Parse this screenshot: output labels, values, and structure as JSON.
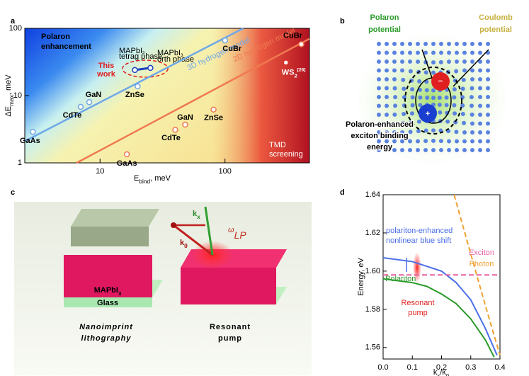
{
  "panel_labels": [
    "a",
    "b",
    "c",
    "d"
  ],
  "chart_data": [
    {
      "type": "scatter",
      "log": true,
      "xlim": [
        2.5,
        474
      ],
      "ylim": [
        1,
        100
      ],
      "xticks": [
        10,
        100
      ],
      "yticks": [
        1,
        10,
        100
      ],
      "xlabel": {
        "main": "E",
        "sub": "bind",
        "rest": ", meV"
      },
      "ylabel": {
        "main": "ΔE",
        "sub": "max",
        "rest": ", meV"
      },
      "annotations": {
        "polaron": [
          "Polaron",
          "enhancement"
        ],
        "tmd": [
          "TMD",
          "screening"
        ],
        "this_work": [
          "This",
          "work"
        ],
        "tetrag": {
          "main": "MAPbI",
          "sub": "3"
        },
        "tetrag_phase": "tetrag phase",
        "orth": {
          "main": "MAPbI",
          "sub": "3"
        },
        "orth_phase": "orth phase"
      },
      "series": [
        {
          "name": "3D hydrogen model",
          "color": "#6fa8e8",
          "line_x": [
            2.5,
            140
          ],
          "line_y": [
            2.1,
            100
          ],
          "labels": [
            "GaAs",
            "CdTe",
            "GaN",
            "ZnSe",
            "CuBr"
          ],
          "x": [
            2.9,
            7.0,
            8.2,
            20,
            100
          ],
          "y": [
            2.9,
            6.8,
            8.0,
            13.7,
            66
          ]
        },
        {
          "name": "2D hydrogen model",
          "color": "#f07850",
          "line_x": [
            6.5,
            474
          ],
          "line_y": [
            1,
            70
          ],
          "labels": [
            "GaAs",
            "CdTe",
            "GaN",
            "ZnSe",
            "CuBr"
          ],
          "x": [
            16.4,
            40,
            48,
            81,
            408
          ],
          "y": [
            1.34,
            3.1,
            3.7,
            6.2,
            58
          ]
        },
        {
          "name": "This work",
          "color": "#1a3fc0",
          "x": [
            19,
            25.3
          ],
          "y": [
            24,
            25.8
          ]
        },
        {
          "label": {
            "main": "WS",
            "sub": "2",
            "sup": "[26]"
          },
          "color": "#e03030",
          "x": [
            307
          ],
          "y": [
            31
          ]
        }
      ]
    },
    {
      "type": "line",
      "xlim": [
        0,
        0.4
      ],
      "ylim": [
        1.554,
        1.64
      ],
      "xticks": [
        {
          "value": 0,
          "label": "0.0"
        },
        0.1,
        0.2,
        0.3,
        0.4
      ],
      "yticks": [
        1.56,
        1.58,
        {
          "value": 1.6,
          "label": "1.60"
        },
        1.62,
        1.64
      ],
      "xlabel": {
        "main": "k",
        "sub": "x",
        "rest": "/k",
        "sub2": "0"
      },
      "ylabel": "Energy, eV",
      "annotation": [
        "Resonant",
        "pump"
      ],
      "series": [
        {
          "name": [
            "polariton-enhanced",
            "nonlinear blue shift"
          ],
          "color": "#4a6ee8",
          "dash": false,
          "x": [
            0,
            0.1,
            0.2,
            0.25,
            0.3,
            0.35,
            0.39
          ],
          "y": [
            1.607,
            1.605,
            1.6,
            1.594,
            1.585,
            1.57,
            1.556
          ]
        },
        {
          "name": [
            "Polariton"
          ],
          "color": "#2a9a2a",
          "dash": false,
          "x": [
            0,
            0.1,
            0.15,
            0.2,
            0.25,
            0.3,
            0.35,
            0.38
          ],
          "y": [
            1.596,
            1.594,
            1.592,
            1.588,
            1.583,
            1.575,
            1.564,
            1.555
          ]
        },
        {
          "name": [
            "Exciton"
          ],
          "color": "#e860a0",
          "dash": true,
          "x": [
            0,
            0.4
          ],
          "y": [
            1.598,
            1.598
          ]
        },
        {
          "name": [
            "Photon"
          ],
          "color": "#f0a030",
          "dash": true,
          "x": [
            0.243,
            0.3,
            0.35,
            0.4
          ],
          "y": [
            1.64,
            1.609,
            1.582,
            1.556
          ]
        }
      ]
    }
  ],
  "panel_b": {
    "polaron": [
      "Polaron",
      "potential"
    ],
    "coulomb": [
      "Coulomb",
      "potential"
    ],
    "binding": [
      "Polaron-enhanced",
      "exciton binding",
      "energy"
    ],
    "minus": "−",
    "plus": "+"
  },
  "panel_c": {
    "kx": {
      "main": "k",
      "sub": "x"
    },
    "k0": {
      "main": "k",
      "sub": "0"
    },
    "omega": {
      "main": "ω",
      "sub": "LP"
    },
    "mapbi": {
      "main": "MAPbI",
      "sub": "3"
    },
    "glass": "Glass",
    "nano": [
      "Nanoimprint",
      "lithography"
    ],
    "pump": [
      "Resonant",
      "pump"
    ]
  }
}
